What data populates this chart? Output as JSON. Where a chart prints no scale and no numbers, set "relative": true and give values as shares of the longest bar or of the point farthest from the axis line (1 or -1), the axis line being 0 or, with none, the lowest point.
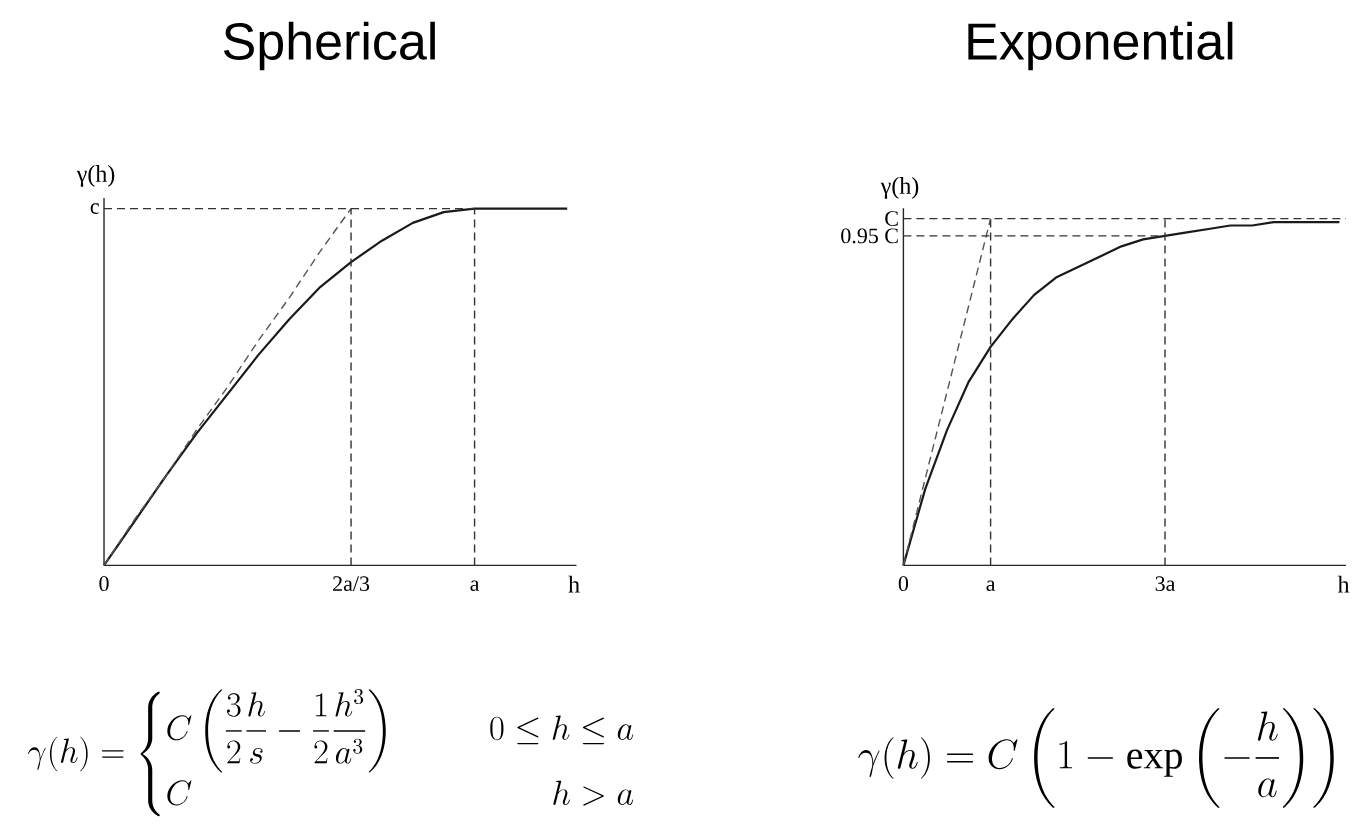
{
  "chart_data": [
    {
      "type": "line",
      "title": "Spherical",
      "xlabel": "h",
      "ylabel": "γ(h)",
      "relative": true,
      "categories": [
        "0",
        null,
        null,
        null,
        null,
        null,
        null,
        null,
        "2a/3",
        null,
        null,
        null,
        "a",
        null,
        null,
        null
      ],
      "series": [
        {
          "color": "#1a1a1a",
          "values": [
            0,
            0.125,
            0.25,
            0.37,
            0.48,
            0.59,
            0.69,
            0.78,
            0.85,
            0.91,
            0.96,
            0.99,
            1,
            1,
            1,
            1
          ]
        },
        {
          "color": "#555555",
          "line_style": "dashed",
          "values": [
            0,
            0.13,
            0.25,
            0.38,
            0.5,
            0.63,
            0.75,
            0.88,
            1,
            null,
            null,
            null,
            null,
            null,
            null,
            null
          ]
        },
        {
          "name": "c",
          "color": "#333333",
          "line_style": "dashed",
          "values": [
            1,
            1,
            1,
            1,
            1,
            1,
            1,
            1,
            1,
            1,
            1,
            1,
            1,
            null,
            null,
            null
          ]
        }
      ],
      "ref_lines": [
        {
          "axis": "x",
          "value": "2a/3",
          "color": "#333333",
          "line_style": "dashed"
        },
        {
          "axis": "x",
          "value": "a",
          "color": "#333333",
          "line_style": "dashed"
        }
      ],
      "annotations": [
        "\\gamma(h)=\\begin{cases}C\\left(\\dfrac{3}{2}\\dfrac{h}{s}-\\dfrac{1}{2}\\dfrac{h^{3}}{a^{3}}\\right) & \\qquad 0\\leq h\\leq a\\\\ C & \\hfill h>a\\end{cases}"
      ]
    },
    {
      "type": "line",
      "title": "Exponential",
      "xlabel": "h",
      "ylabel": "γ(h)",
      "relative": true,
      "categories": [
        "0",
        null,
        null,
        null,
        "a",
        null,
        null,
        null,
        null,
        null,
        null,
        null,
        "3a",
        null,
        null,
        null,
        null,
        null,
        null,
        null,
        null
      ],
      "series": [
        {
          "color": "#1a1a1a",
          "values": [
            0,
            0.22,
            0.39,
            0.53,
            0.63,
            0.71,
            0.78,
            0.83,
            0.86,
            0.89,
            0.92,
            0.94,
            0.95,
            0.96,
            0.97,
            0.98,
            0.98,
            0.99,
            0.99,
            0.99,
            0.99
          ]
        },
        {
          "color": "#555555",
          "line_style": "dashed",
          "values": [
            0,
            0.25,
            0.5,
            0.75,
            1,
            null,
            null,
            null,
            null,
            null,
            null,
            null,
            null,
            null,
            null,
            null,
            null,
            null,
            null,
            null,
            null
          ]
        },
        {
          "name": "0.95 C",
          "color": "#333333",
          "line_style": "dashed",
          "values": [
            0.95,
            0.95,
            0.95,
            0.95,
            0.95,
            0.95,
            0.95,
            0.95,
            0.95,
            0.95,
            0.95,
            0.95,
            0.95,
            null,
            null,
            null,
            null,
            null,
            null,
            null,
            null
          ]
        }
      ],
      "ref_lines": [
        {
          "axis": "y",
          "value": 1,
          "label": "C",
          "color": "#333333",
          "line_style": "dashed"
        },
        {
          "axis": "x",
          "value": "a",
          "color": "#333333",
          "line_style": "dashed"
        },
        {
          "axis": "x",
          "value": "3a",
          "color": "#333333",
          "line_style": "dashed"
        }
      ],
      "annotations": [
        "\\gamma(h)=C\\left(1-\\exp\\left(-\\dfrac{h}{a}\\right)\\right)"
      ]
    }
  ]
}
